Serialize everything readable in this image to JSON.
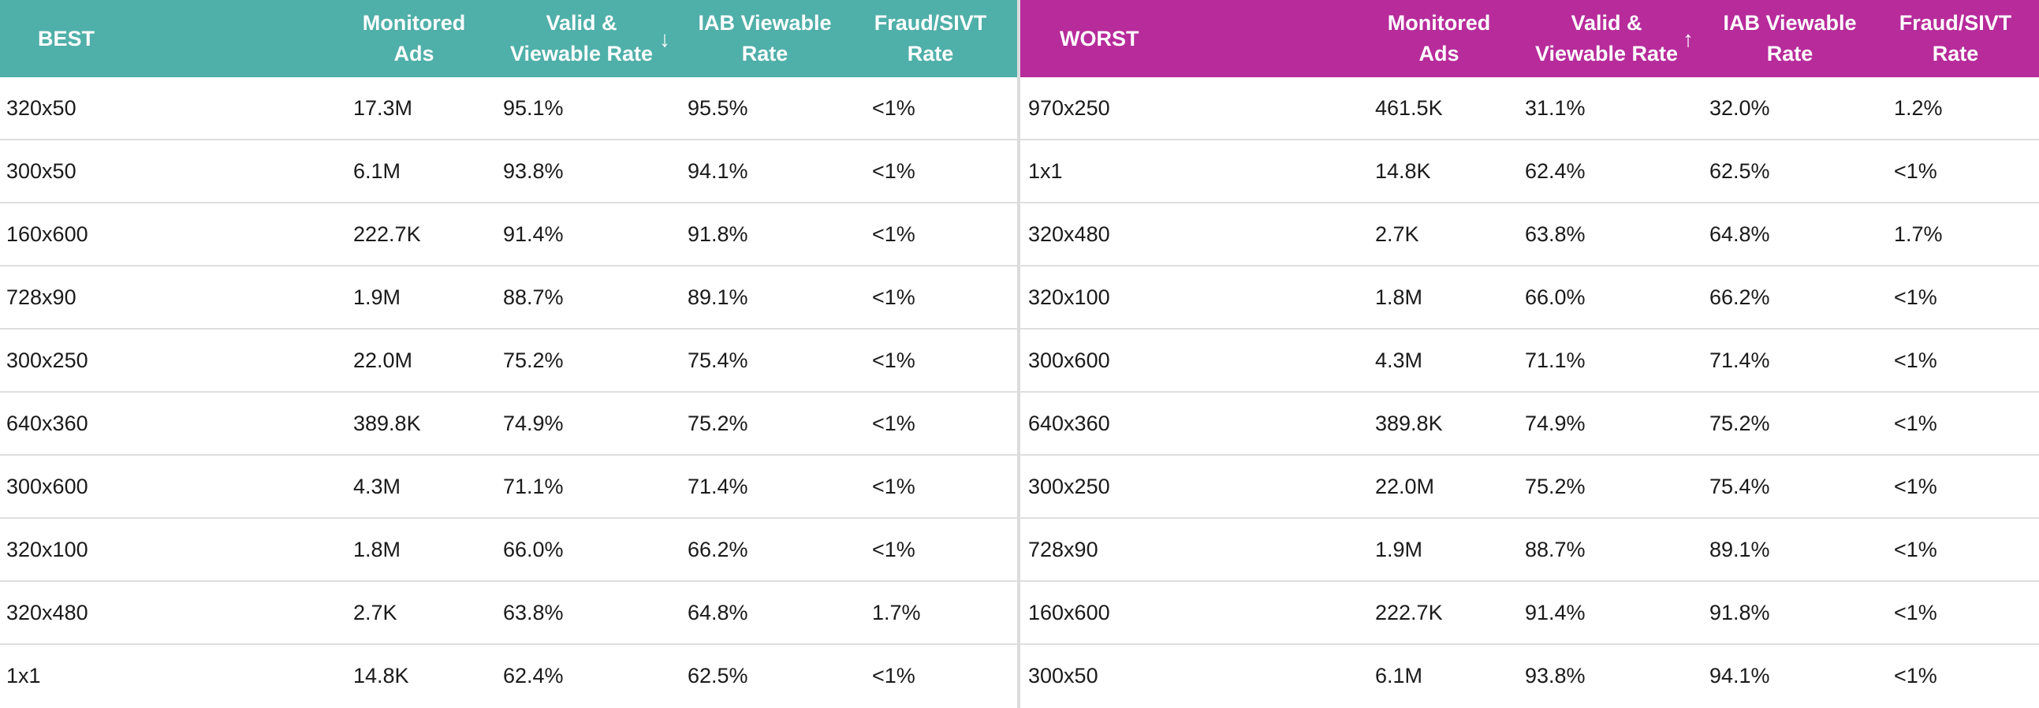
{
  "best": {
    "title": "BEST",
    "headers": {
      "monitored_line1": "Monitored",
      "monitored_line2": "Ads",
      "valid_line1": "Valid &",
      "valid_line2": "Viewable Rate",
      "iab_line1": "IAB Viewable",
      "iab_line2": "Rate",
      "fraud_line1": "Fraud/SIVT",
      "fraud_line2": "Rate"
    },
    "sort_icon": "arrow-down-icon",
    "sort_glyph": "↓",
    "rows": [
      {
        "size": "320x50",
        "monitored": "17.3M",
        "valid": "95.1%",
        "iab": "95.5%",
        "fraud": "<1%"
      },
      {
        "size": "300x50",
        "monitored": "6.1M",
        "valid": "93.8%",
        "iab": "94.1%",
        "fraud": "<1%"
      },
      {
        "size": "160x600",
        "monitored": "222.7K",
        "valid": "91.4%",
        "iab": "91.8%",
        "fraud": "<1%"
      },
      {
        "size": "728x90",
        "monitored": "1.9M",
        "valid": "88.7%",
        "iab": "89.1%",
        "fraud": "<1%"
      },
      {
        "size": "300x250",
        "monitored": "22.0M",
        "valid": "75.2%",
        "iab": "75.4%",
        "fraud": "<1%"
      },
      {
        "size": "640x360",
        "monitored": "389.8K",
        "valid": "74.9%",
        "iab": "75.2%",
        "fraud": "<1%"
      },
      {
        "size": "300x600",
        "monitored": "4.3M",
        "valid": "71.1%",
        "iab": "71.4%",
        "fraud": "<1%"
      },
      {
        "size": "320x100",
        "monitored": "1.8M",
        "valid": "66.0%",
        "iab": "66.2%",
        "fraud": "<1%"
      },
      {
        "size": "320x480",
        "monitored": "2.7K",
        "valid": "63.8%",
        "iab": "64.8%",
        "fraud": "1.7%"
      },
      {
        "size": "1x1",
        "monitored": "14.8K",
        "valid": "62.4%",
        "iab": "62.5%",
        "fraud": "<1%"
      }
    ]
  },
  "worst": {
    "title": "WORST",
    "headers": {
      "monitored_line1": "Monitored",
      "monitored_line2": "Ads",
      "valid_line1": "Valid &",
      "valid_line2": "Viewable Rate",
      "iab_line1": "IAB Viewable",
      "iab_line2": "Rate",
      "fraud_line1": "Fraud/SIVT",
      "fraud_line2": "Rate"
    },
    "sort_icon": "arrow-up-icon",
    "sort_glyph": "↑",
    "rows": [
      {
        "size": "970x250",
        "monitored": "461.5K",
        "valid": "31.1%",
        "iab": "32.0%",
        "fraud": "1.2%"
      },
      {
        "size": "1x1",
        "monitored": "14.8K",
        "valid": "62.4%",
        "iab": "62.5%",
        "fraud": "<1%"
      },
      {
        "size": "320x480",
        "monitored": "2.7K",
        "valid": "63.8%",
        "iab": "64.8%",
        "fraud": "1.7%"
      },
      {
        "size": "320x100",
        "monitored": "1.8M",
        "valid": "66.0%",
        "iab": "66.2%",
        "fraud": "<1%"
      },
      {
        "size": "300x600",
        "monitored": "4.3M",
        "valid": "71.1%",
        "iab": "71.4%",
        "fraud": "<1%"
      },
      {
        "size": "640x360",
        "monitored": "389.8K",
        "valid": "74.9%",
        "iab": "75.2%",
        "fraud": "<1%"
      },
      {
        "size": "300x250",
        "monitored": "22.0M",
        "valid": "75.2%",
        "iab": "75.4%",
        "fraud": "<1%"
      },
      {
        "size": "728x90",
        "monitored": "1.9M",
        "valid": "88.7%",
        "iab": "89.1%",
        "fraud": "<1%"
      },
      {
        "size": "160x600",
        "monitored": "222.7K",
        "valid": "91.4%",
        "iab": "91.8%",
        "fraud": "<1%"
      },
      {
        "size": "300x50",
        "monitored": "6.1M",
        "valid": "93.8%",
        "iab": "94.1%",
        "fraud": "<1%"
      }
    ]
  },
  "colors": {
    "best_header": "#4fafa9",
    "worst_header": "#b72b9b"
  }
}
